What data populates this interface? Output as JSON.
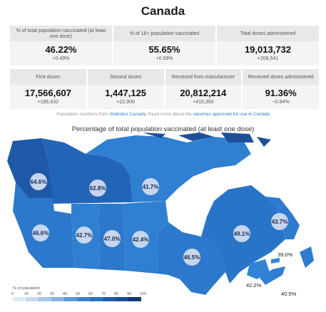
{
  "title": "Canada",
  "stats_row1": [
    {
      "label": "% of total population vaccinated (at least one dose)",
      "value": "46.22%",
      "change": "+0.49%"
    },
    {
      "label": "% of 16+ population vaccinated",
      "value": "55.65%",
      "change": "+0.59%"
    },
    {
      "label": "Total doses administered",
      "value": "19,013,732",
      "change": "+208,541"
    }
  ],
  "stats_row2": [
    {
      "label": "First doses",
      "value": "17,566,607",
      "change": "+185,632"
    },
    {
      "label": "Second doses",
      "value": "1,447,125",
      "change": "+22,909"
    },
    {
      "label": "Received from manufacturer",
      "value": "20,812,214",
      "change": "+415,350"
    },
    {
      "label": "Received doses administered",
      "value": "91.36%",
      "change": "−0.84%"
    }
  ],
  "source": {
    "prefix": "Population numbers from ",
    "link1": "Statistics Canada",
    "middle": ". Read more about the ",
    "link2": "vaccines approved for use in Canada"
  },
  "map_title": "Percentage of total population vaccinated (at least one dose)",
  "regions": [
    {
      "name": "Yukon",
      "value": "64.6%",
      "color": "#1f58a8"
    },
    {
      "name": "Northwest Territories",
      "value": "62.8%",
      "color": "#2264b8"
    },
    {
      "name": "Nunavut",
      "value": "41.7%",
      "color": "#2f7fd2"
    },
    {
      "name": "British Columbia",
      "value": "46.6%",
      "color": "#2b78cc"
    },
    {
      "name": "Alberta",
      "value": "42.7%",
      "color": "#2f7fd2"
    },
    {
      "name": "Saskatchewan",
      "value": "47.0%",
      "color": "#2b78cc"
    },
    {
      "name": "Manitoba",
      "value": "42.4%",
      "color": "#2f7fd2"
    },
    {
      "name": "Ontario",
      "value": "46.5%",
      "color": "#2b78cc"
    },
    {
      "name": "Quebec",
      "value": "49.1%",
      "color": "#2874c8"
    },
    {
      "name": "Newfoundland and Labrador",
      "value": "43.7%",
      "color": "#2d7acf"
    },
    {
      "name": "Prince Edward Island",
      "value": "39.0%",
      "color": "#3388d8"
    },
    {
      "name": "Nova Scotia",
      "value": "42.2%",
      "color": "#2f7fd2"
    },
    {
      "name": "New Brunswick",
      "value": "40.5%",
      "color": "#3184d5"
    }
  ],
  "legend": {
    "title": "% of population",
    "ticks": [
      "0",
      "10",
      "20",
      "30",
      "40",
      "50",
      "60",
      "70",
      "80",
      "90",
      "100"
    ],
    "colors": [
      "#dfeaf7",
      "#c4d9f1",
      "#a7c6ea",
      "#86b1e2",
      "#5e98da",
      "#3a84d4",
      "#2870c6",
      "#1f5cae",
      "#194b92",
      "#133974"
    ]
  }
}
